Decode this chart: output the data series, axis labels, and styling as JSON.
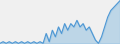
{
  "values": [
    3,
    3.5,
    3,
    3.5,
    3,
    3.5,
    3,
    3.5,
    3,
    3.5,
    3,
    3.5,
    3,
    3.5,
    3,
    6,
    3.5,
    7,
    5,
    8,
    6,
    9,
    7,
    9,
    8,
    10,
    8,
    9,
    7,
    8,
    6,
    4,
    3,
    5,
    8,
    11,
    13,
    14,
    15,
    16
  ],
  "line_color": "#4d97d4",
  "fill_color": "#8bbde0",
  "background_color": "#f0f0f0",
  "linewidth": 0.8
}
